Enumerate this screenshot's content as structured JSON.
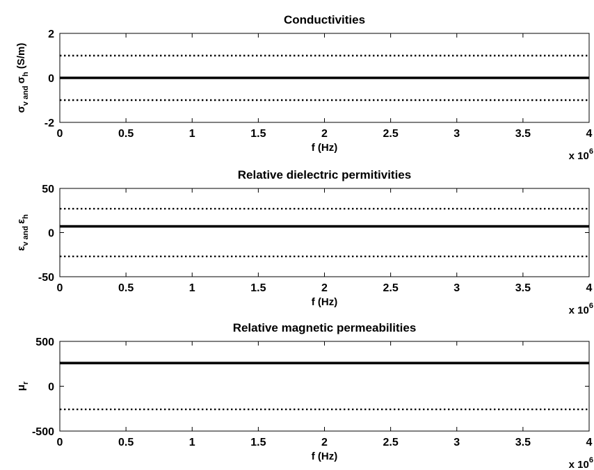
{
  "chart_data": [
    {
      "type": "line",
      "title": "Conductivities",
      "xlabel": "f (Hz)",
      "x_multiplier": {
        "base": "x 10",
        "exponent": "6"
      },
      "ylabel": {
        "symbol1": "σ",
        "sub1": "v and ",
        "symbol2": "σ",
        "sub2": "h",
        "unit": " (S/m)"
      },
      "xlim": [
        0,
        4
      ],
      "ylim": [
        -2,
        2
      ],
      "xticks": [
        "0",
        "0.5",
        "1",
        "1.5",
        "2",
        "2.5",
        "3",
        "3.5",
        "4"
      ],
      "yticks": [
        "-2",
        "0",
        "2"
      ],
      "grid": false,
      "series": [
        {
          "style": "solid",
          "x": [
            0,
            4
          ],
          "y": [
            0,
            0
          ]
        },
        {
          "style": "dotted",
          "x": [
            0,
            4
          ],
          "y": [
            1,
            1
          ]
        },
        {
          "style": "dotted",
          "x": [
            0,
            4
          ],
          "y": [
            -1,
            -1
          ]
        }
      ]
    },
    {
      "type": "line",
      "title": "Relative dielectric permitivities",
      "xlabel": "f (Hz)",
      "x_multiplier": {
        "base": "x 10",
        "exponent": "6"
      },
      "ylabel": {
        "symbol1": "ε",
        "sub1": "v and ",
        "symbol2": "ε",
        "sub2": "h",
        "unit": ""
      },
      "xlim": [
        0,
        4
      ],
      "ylim": [
        -50,
        50
      ],
      "xticks": [
        "0",
        "0.5",
        "1",
        "1.5",
        "2",
        "2.5",
        "3",
        "3.5",
        "4"
      ],
      "yticks": [
        "-50",
        "0",
        "50"
      ],
      "grid": false,
      "series": [
        {
          "style": "solid",
          "x": [
            0,
            4
          ],
          "y": [
            7,
            7
          ]
        },
        {
          "style": "dotted",
          "x": [
            0,
            4
          ],
          "y": [
            27,
            27
          ]
        },
        {
          "style": "dotted",
          "x": [
            0,
            4
          ],
          "y": [
            -27,
            -27
          ]
        }
      ]
    },
    {
      "type": "line",
      "title": "Relative magnetic permeabilities",
      "xlabel": "f (Hz)",
      "x_multiplier": {
        "base": "x 10",
        "exponent": "6"
      },
      "ylabel": {
        "symbol1": "μ",
        "sub1": "r",
        "symbol2": "",
        "sub2": "",
        "unit": ""
      },
      "xlim": [
        0,
        4
      ],
      "ylim": [
        -500,
        500
      ],
      "xticks": [
        "0",
        "0.5",
        "1",
        "1.5",
        "2",
        "2.5",
        "3",
        "3.5",
        "4"
      ],
      "yticks": [
        "-500",
        "0",
        "500"
      ],
      "grid": false,
      "series": [
        {
          "style": "solid",
          "x": [
            0,
            4
          ],
          "y": [
            258,
            258
          ]
        },
        {
          "style": "dotted",
          "x": [
            0,
            4
          ],
          "y": [
            -258,
            -258
          ]
        }
      ]
    }
  ],
  "colors": {
    "line": "#000000",
    "axis": "#000000",
    "background": "#ffffff"
  }
}
